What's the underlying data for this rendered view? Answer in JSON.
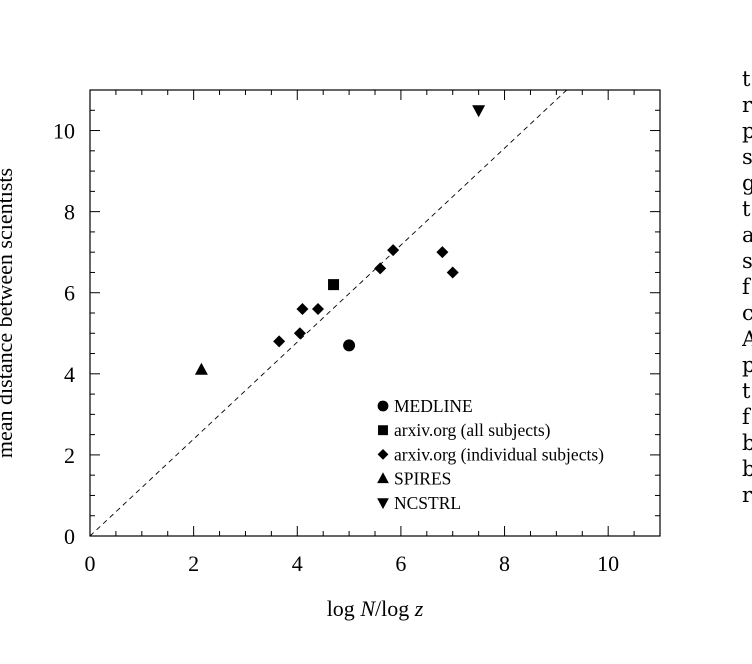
{
  "chart_data": {
    "type": "scatter",
    "xlabel": "log N/log z",
    "xlabel_parts": {
      "pre": "log ",
      "italic1": "N",
      "mid": "/log ",
      "italic2": "z"
    },
    "ylabel": "mean distance between scientists",
    "xlim": [
      0,
      11
    ],
    "ylim": [
      0,
      11
    ],
    "xticks": [
      0,
      2,
      4,
      6,
      8,
      10
    ],
    "yticks": [
      0,
      2,
      4,
      6,
      8,
      10
    ],
    "grid": false,
    "legend_position": "bottom-right",
    "series": [
      {
        "name": "MEDLINE",
        "marker": "circle",
        "points": [
          [
            5.0,
            4.7
          ]
        ]
      },
      {
        "name": "arxiv.org (all subjects)",
        "marker": "square",
        "points": [
          [
            4.7,
            6.2
          ]
        ]
      },
      {
        "name": "arxiv.org (individual subjects)",
        "marker": "diamond",
        "points": [
          [
            3.65,
            4.8
          ],
          [
            4.05,
            5.0
          ],
          [
            4.1,
            5.6
          ],
          [
            4.4,
            5.6
          ],
          [
            5.6,
            6.6
          ],
          [
            5.85,
            7.05
          ],
          [
            6.8,
            7.0
          ],
          [
            7.0,
            6.5
          ]
        ]
      },
      {
        "name": "SPIRES",
        "marker": "triangle-up",
        "points": [
          [
            2.15,
            4.1
          ]
        ]
      },
      {
        "name": "NCSTRL",
        "marker": "triangle-down",
        "points": [
          [
            7.5,
            10.5
          ]
        ]
      }
    ],
    "reference_line": {
      "style": "dashed",
      "from": [
        0,
        0
      ],
      "to": [
        9.2,
        11
      ]
    }
  },
  "right_column_text": [
    "t",
    "r",
    "p",
    "s",
    "g",
    "t",
    "a",
    "s",
    "f",
    "c",
    "A",
    "p",
    "t",
    "f",
    "b",
    "b",
    "r"
  ]
}
